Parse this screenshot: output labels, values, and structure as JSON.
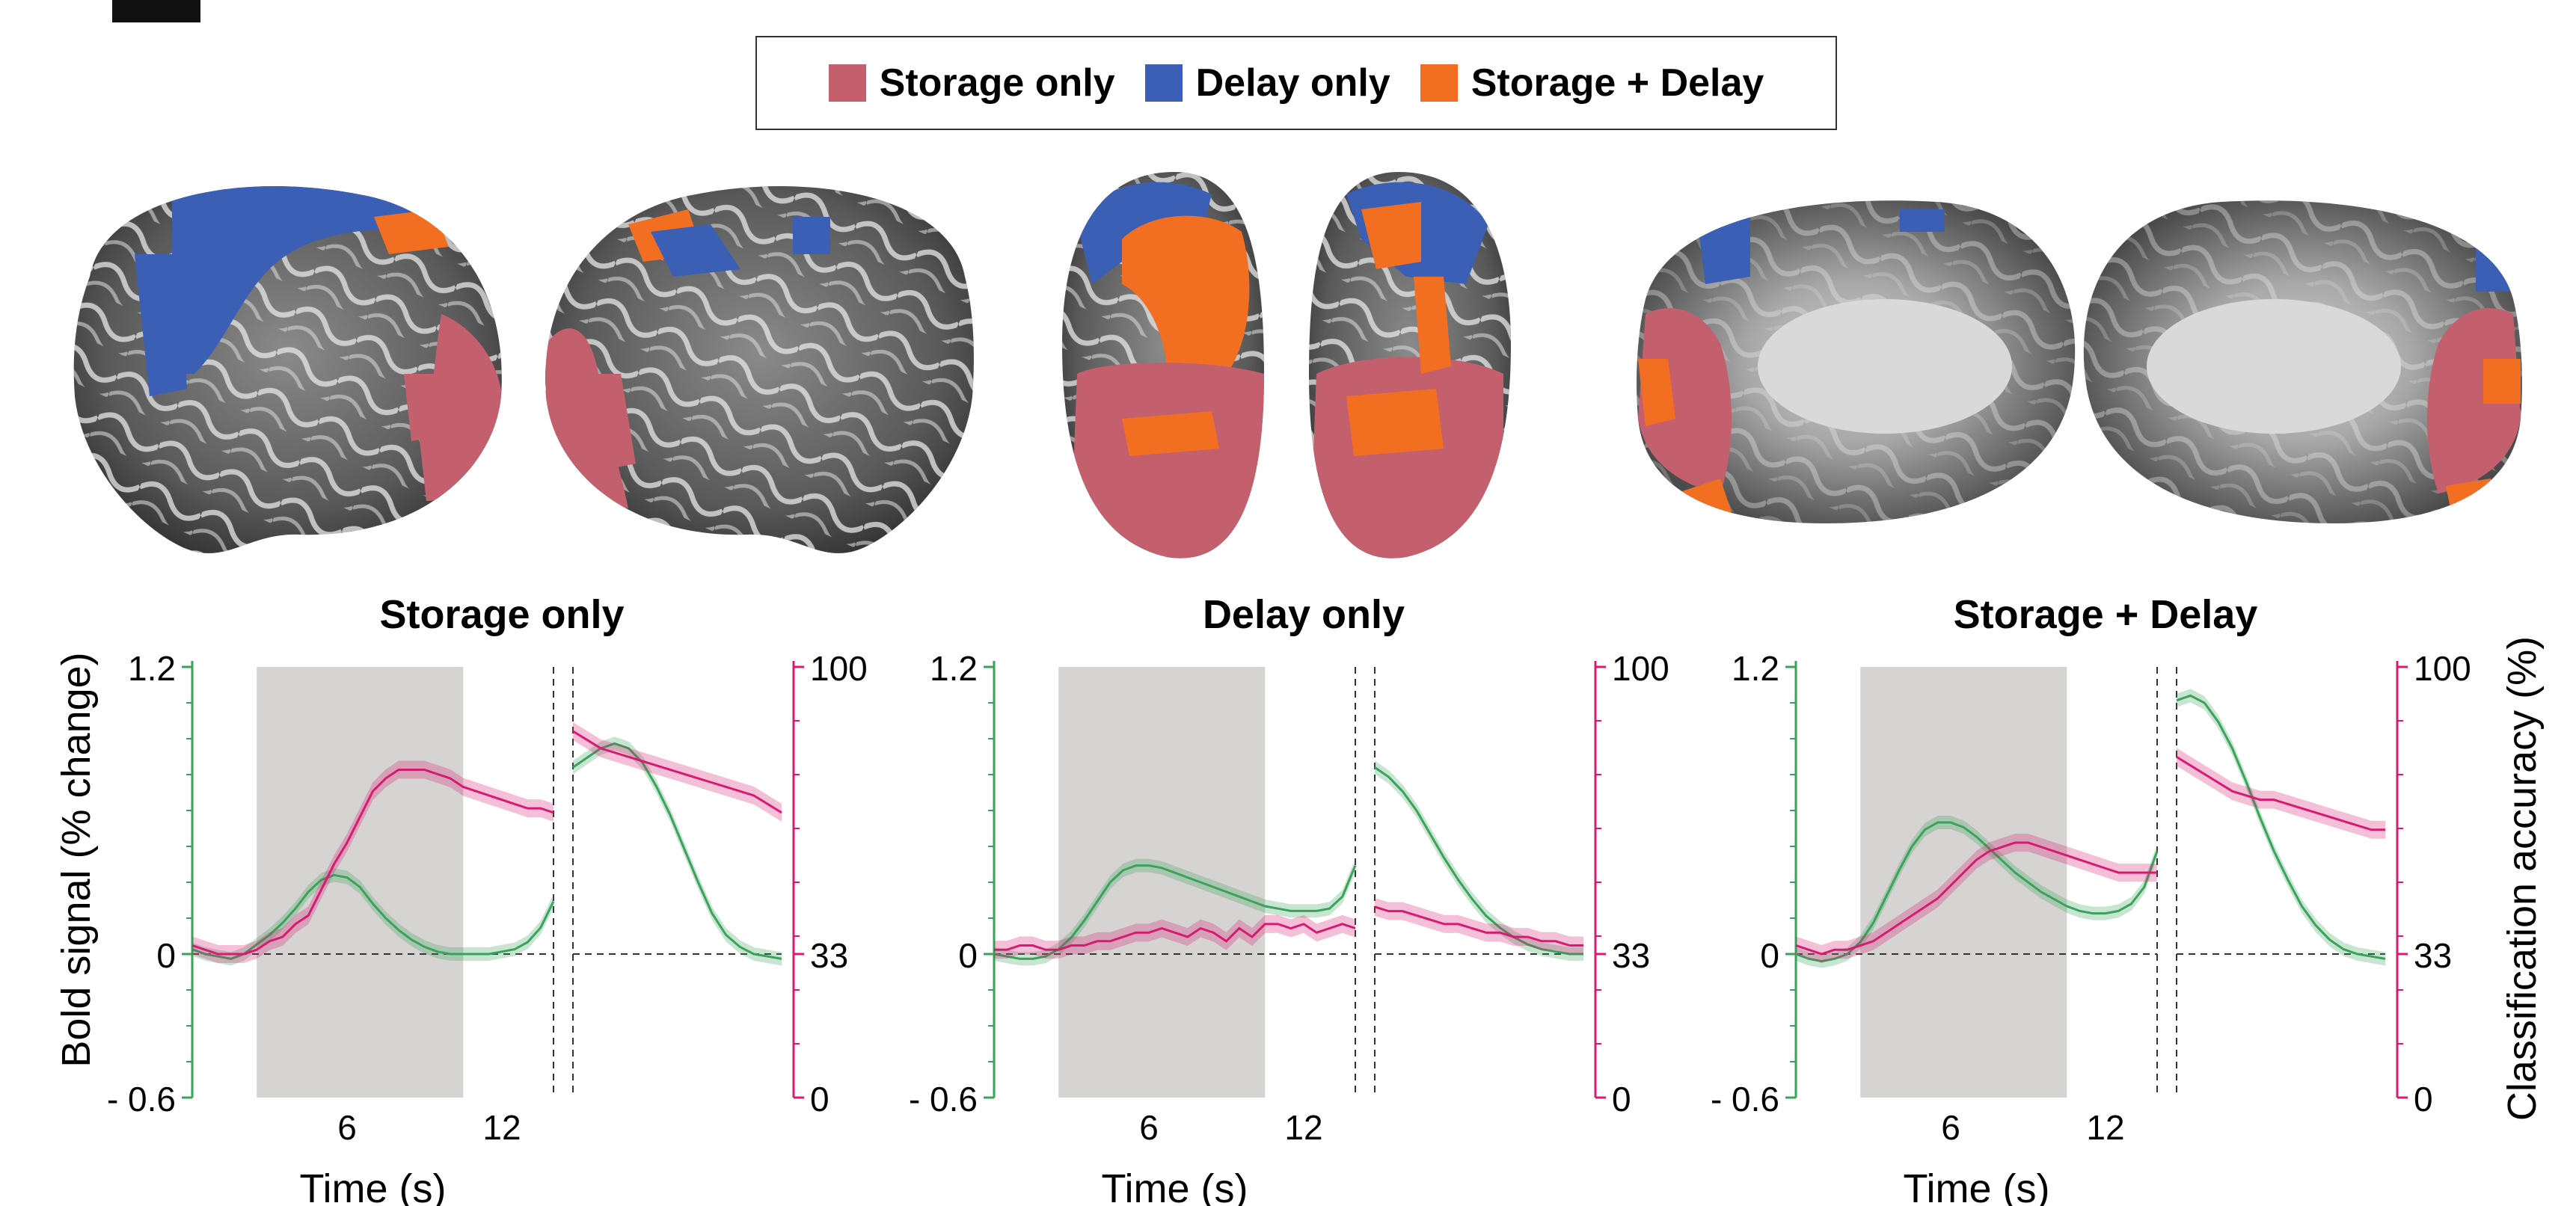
{
  "legend": {
    "items": [
      {
        "label": "Storage only",
        "color": "#c4606e"
      },
      {
        "label": "Delay only",
        "color": "#3b5fb5"
      },
      {
        "label": "Storage + Delay",
        "color": "#f26f22"
      }
    ]
  },
  "colors": {
    "storage": "#c4606e",
    "delay": "#3b5fb5",
    "both": "#f26f22",
    "bold_line": "#3aa35b",
    "accuracy_line": "#d81b72",
    "delay_shade": "#d6d4d2"
  },
  "left_axis": {
    "label": "Bold signal (% change)",
    "ticks": [
      "1.2",
      "0",
      "- 0.6"
    ]
  },
  "right_axis": {
    "label": "Classification accuracy (%)",
    "ticks": [
      "100",
      "33",
      "0"
    ]
  },
  "chart_data": [
    {
      "type": "line",
      "title": "Storage only",
      "xlabel": "Time (s)",
      "x_ticks": [
        "6",
        "12"
      ],
      "delay_period": [
        2.5,
        10.5
      ],
      "y_left_range": [
        -0.6,
        1.2
      ],
      "y_right_range": [
        0,
        100
      ],
      "left_panel_x": [
        0,
        0.5,
        1,
        1.5,
        2,
        2.5,
        3,
        3.5,
        4,
        4.5,
        5,
        5.5,
        6,
        6.5,
        7,
        7.5,
        8,
        8.5,
        9,
        9.5,
        10,
        10.5,
        11,
        11.5,
        12,
        12.5,
        13,
        13.5,
        14
      ],
      "bold_left": [
        0.02,
        0.0,
        -0.01,
        -0.02,
        0.0,
        0.04,
        0.08,
        0.13,
        0.19,
        0.26,
        0.31,
        0.33,
        0.32,
        0.28,
        0.21,
        0.15,
        0.1,
        0.06,
        0.03,
        0.01,
        0.0,
        0.0,
        0.0,
        0.0,
        0.01,
        0.02,
        0.05,
        0.11,
        0.22
      ],
      "accuracy_left": [
        35,
        34,
        33,
        33,
        33,
        34,
        36,
        37,
        40,
        42,
        48,
        54,
        59,
        65,
        71,
        74,
        76,
        76,
        76,
        75,
        74,
        72,
        71,
        70,
        69,
        68,
        67,
        67,
        66
      ],
      "bold_right": [
        0.78,
        0.82,
        0.86,
        0.88,
        0.86,
        0.8,
        0.7,
        0.58,
        0.44,
        0.3,
        0.17,
        0.08,
        0.03,
        0.0,
        -0.01,
        -0.02
      ],
      "accuracy_right": [
        85,
        83,
        81,
        80,
        79,
        78,
        77,
        76,
        75,
        74,
        73,
        72,
        71,
        70,
        68,
        66
      ]
    },
    {
      "type": "line",
      "title": "Delay only",
      "xlabel": "Time (s)",
      "x_ticks": [
        "6",
        "12"
      ],
      "delay_period": [
        2.5,
        10.5
      ],
      "y_left_range": [
        -0.6,
        1.2
      ],
      "y_right_range": [
        0,
        100
      ],
      "left_panel_x": [
        0,
        0.5,
        1,
        1.5,
        2,
        2.5,
        3,
        3.5,
        4,
        4.5,
        5,
        5.5,
        6,
        6.5,
        7,
        7.5,
        8,
        8.5,
        9,
        9.5,
        10,
        10.5,
        11,
        11.5,
        12,
        12.5,
        13,
        13.5,
        14
      ],
      "bold_left": [
        0.0,
        -0.01,
        -0.02,
        -0.02,
        -0.01,
        0.02,
        0.07,
        0.14,
        0.22,
        0.3,
        0.35,
        0.37,
        0.37,
        0.36,
        0.34,
        0.32,
        0.3,
        0.28,
        0.26,
        0.24,
        0.22,
        0.2,
        0.19,
        0.18,
        0.18,
        0.18,
        0.19,
        0.24,
        0.37
      ],
      "accuracy_left": [
        34,
        34,
        35,
        35,
        34,
        34,
        35,
        35,
        36,
        36,
        37,
        38,
        38,
        39,
        38,
        37,
        39,
        38,
        36,
        39,
        37,
        40,
        40,
        39,
        40,
        38,
        39,
        40,
        39
      ],
      "bold_right": [
        0.78,
        0.74,
        0.68,
        0.6,
        0.5,
        0.4,
        0.31,
        0.23,
        0.16,
        0.11,
        0.07,
        0.04,
        0.02,
        0.01,
        0.0,
        0.0
      ],
      "accuracy_right": [
        44,
        43,
        43,
        42,
        41,
        40,
        40,
        39,
        38,
        38,
        37,
        37,
        36,
        36,
        35,
        35
      ]
    },
    {
      "type": "line",
      "title": "Storage + Delay",
      "xlabel": "Time (s)",
      "x_ticks": [
        "6",
        "12"
      ],
      "delay_period": [
        2.5,
        10.5
      ],
      "y_left_range": [
        -0.6,
        1.2
      ],
      "y_right_range": [
        0,
        100
      ],
      "left_panel_x": [
        0,
        0.5,
        1,
        1.5,
        2,
        2.5,
        3,
        3.5,
        4,
        4.5,
        5,
        5.5,
        6,
        6.5,
        7,
        7.5,
        8,
        8.5,
        9,
        9.5,
        10,
        10.5,
        11,
        11.5,
        12,
        12.5,
        13,
        13.5,
        14
      ],
      "bold_left": [
        0.0,
        -0.02,
        -0.03,
        -0.02,
        0.0,
        0.05,
        0.13,
        0.24,
        0.35,
        0.45,
        0.52,
        0.55,
        0.55,
        0.53,
        0.49,
        0.44,
        0.39,
        0.34,
        0.3,
        0.26,
        0.23,
        0.2,
        0.18,
        0.17,
        0.17,
        0.18,
        0.21,
        0.28,
        0.43
      ],
      "accuracy_left": [
        35,
        34,
        33,
        34,
        34,
        35,
        36,
        38,
        40,
        42,
        44,
        46,
        49,
        52,
        55,
        57,
        58,
        59,
        59,
        58,
        57,
        56,
        55,
        54,
        53,
        52,
        52,
        52,
        52
      ],
      "bold_right": [
        1.06,
        1.08,
        1.05,
        0.97,
        0.86,
        0.72,
        0.57,
        0.43,
        0.31,
        0.2,
        0.12,
        0.06,
        0.02,
        0.0,
        -0.01,
        -0.02
      ],
      "accuracy_right": [
        79,
        77,
        75,
        73,
        71,
        70,
        69,
        69,
        68,
        67,
        66,
        65,
        64,
        63,
        62,
        62
      ]
    }
  ]
}
